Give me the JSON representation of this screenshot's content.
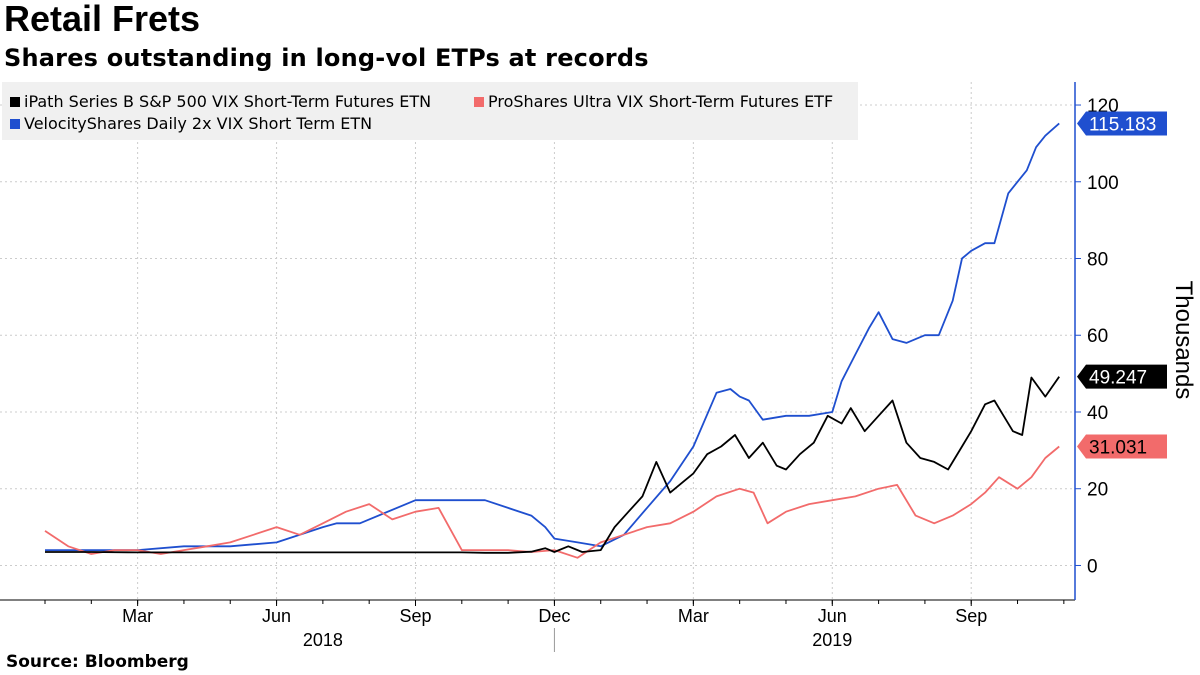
{
  "header": {
    "title": "Retail Frets",
    "subtitle": "Shares outstanding in long-vol ETPs at records"
  },
  "footer": {
    "source": "Source: Bloomberg"
  },
  "chart_data": {
    "type": "line",
    "ylabel": "Thousands",
    "xlabel": "",
    "ylim": [
      -9,
      126
    ],
    "yticks": [
      0,
      20,
      40,
      60,
      80,
      100,
      120
    ],
    "xlim": [
      0,
      22.5
    ],
    "month_ticks": [
      "Mar",
      "Jun",
      "Sep",
      "Dec",
      "Mar",
      "Jun",
      "Sep"
    ],
    "month_tick_positions": [
      2,
      5,
      8,
      11,
      14,
      17,
      20
    ],
    "year_labels": [
      {
        "label": "2018",
        "pos": 6
      },
      {
        "label": "2019",
        "pos": 17
      }
    ],
    "grid": true,
    "legend_position": "top-left",
    "series": [
      {
        "name": "iPath Series B S&P 500 VIX Short-Term Futures ETN",
        "color": "#000000",
        "last_label": "49.247",
        "x": [
          0,
          1,
          2,
          3,
          4,
          5,
          6,
          7,
          8,
          9,
          9.5,
          10,
          10.5,
          10.8,
          11,
          11.3,
          11.6,
          12,
          12.3,
          12.6,
          12.9,
          13.2,
          13.5,
          13.8,
          14,
          14.3,
          14.6,
          14.9,
          15.2,
          15.5,
          15.8,
          16,
          16.3,
          16.6,
          16.9,
          17.2,
          17.4,
          17.7,
          18,
          18.3,
          18.6,
          18.9,
          19.2,
          19.5,
          19.8,
          20,
          20.3,
          20.5,
          20.7,
          20.9,
          21.1,
          21.3,
          21.6,
          21.9
        ],
        "y": [
          3.5,
          3.5,
          3.4,
          3.4,
          3.4,
          3.4,
          3.4,
          3.4,
          3.4,
          3.4,
          3.3,
          3.3,
          3.6,
          4.5,
          3.5,
          5,
          3.5,
          4,
          10,
          14,
          18,
          27,
          19,
          22,
          24,
          29,
          31,
          34,
          28,
          32,
          26,
          25,
          29,
          32,
          39,
          37,
          41,
          35,
          39,
          43,
          32,
          28,
          27,
          25,
          31,
          35,
          42,
          43,
          39,
          35,
          34,
          49,
          44,
          49.2
        ]
      },
      {
        "name": "ProShares Ultra VIX Short-Term Futures ETF",
        "color": "#f26b6b",
        "last_label": "31.031",
        "x": [
          0,
          0.5,
          1,
          1.5,
          2,
          2.5,
          3,
          3.5,
          4,
          4.5,
          5,
          5.5,
          6,
          6.5,
          7,
          7.5,
          8,
          8.5,
          9,
          9.5,
          10,
          10.5,
          11,
          11.5,
          12,
          12.5,
          13,
          13.5,
          14,
          14.5,
          15,
          15.3,
          15.6,
          16,
          16.5,
          17,
          17.5,
          18,
          18.4,
          18.8,
          19.2,
          19.6,
          20,
          20.3,
          20.6,
          21,
          21.3,
          21.6,
          21.9
        ],
        "y": [
          9,
          5,
          3,
          4,
          4,
          3,
          4,
          5,
          6,
          8,
          10,
          8,
          11,
          14,
          16,
          12,
          14,
          15,
          4,
          4,
          4,
          3.5,
          4,
          2,
          6,
          8,
          10,
          11,
          14,
          18,
          20,
          19,
          11,
          14,
          16,
          17,
          18,
          20,
          21,
          13,
          11,
          13,
          16,
          19,
          23,
          20,
          23,
          28,
          31
        ]
      },
      {
        "name": "VelocityShares Daily 2x VIX Short Term ETN",
        "color": "#1f4fcf",
        "last_label": "115.183",
        "x": [
          0,
          1,
          2,
          3,
          4,
          5,
          6,
          6.3,
          6.8,
          7,
          8,
          9,
          9.5,
          10,
          10.5,
          10.8,
          11,
          11.5,
          12,
          12.5,
          13,
          13.5,
          14,
          14.5,
          14.8,
          15,
          15.2,
          15.5,
          16,
          16.5,
          17,
          17.2,
          17.5,
          17.8,
          18,
          18.3,
          18.6,
          19,
          19.3,
          19.6,
          19.8,
          20,
          20.3,
          20.5,
          20.8,
          21,
          21.2,
          21.4,
          21.6,
          21.9
        ],
        "y": [
          4,
          4,
          4,
          5,
          5,
          6,
          10,
          11,
          11,
          12,
          17,
          17,
          17,
          15,
          13,
          10,
          7,
          6,
          5,
          8,
          15,
          22,
          31,
          45,
          46,
          44,
          43,
          38,
          39,
          39,
          40,
          48,
          55,
          62,
          66,
          59,
          58,
          60,
          60,
          69,
          80,
          82,
          84,
          84,
          97,
          100,
          103,
          109,
          112,
          115.2
        ]
      }
    ]
  },
  "last_value_labels": [
    "115.183",
    "49.247",
    "31.031"
  ]
}
